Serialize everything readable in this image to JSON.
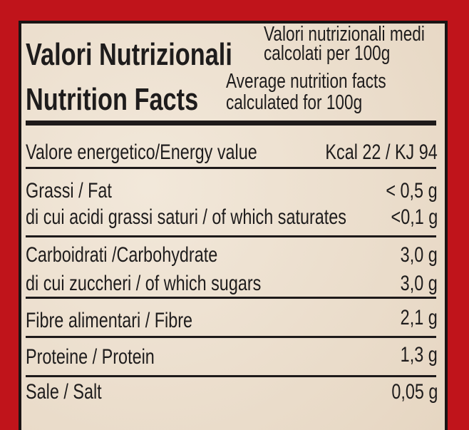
{
  "header": {
    "title_it": "Valori Nutrizionali",
    "title_en": "Nutrition Facts",
    "subtitle_it_1": "Valori nutrizionali medi",
    "subtitle_it_2": "calcolati per 100g",
    "subtitle_en_1": "Average nutrition facts",
    "subtitle_en_2": "calculated for 100g"
  },
  "rows": [
    {
      "label": "Valore energetico/Energy value",
      "value": "Kcal 22 / KJ 94"
    },
    {
      "label": "Grassi / Fat",
      "value": "< 0,5 g"
    },
    {
      "label": "di cui acidi grassi saturi / of which saturates",
      "value": "<0,1 g"
    },
    {
      "label": "Carboidrati /Carbohydrate",
      "value": "3,0 g"
    },
    {
      "label": "di cui zuccheri / of which sugars",
      "value": "3,0 g"
    },
    {
      "label": "Fibre alimentari / Fibre",
      "value": "2,1 g"
    },
    {
      "label": "Proteine / Protein",
      "value": "1,3 g"
    },
    {
      "label": "Sale / Salt",
      "value": "0,05 g"
    }
  ],
  "colors": {
    "background": "#c0141b",
    "label": "#ece0cf",
    "ink": "#1e1c1c"
  }
}
